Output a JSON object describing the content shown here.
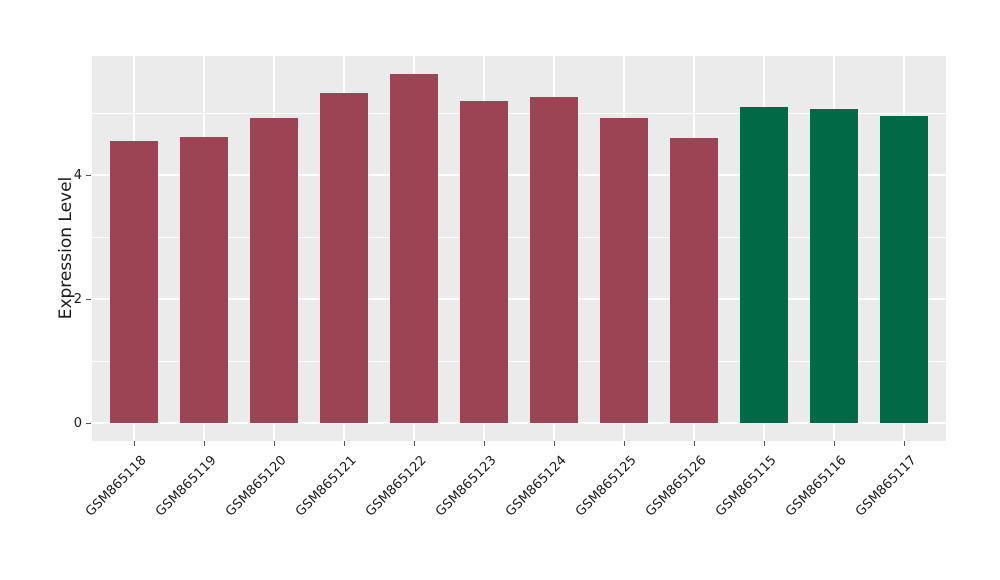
{
  "chart_data": {
    "type": "bar",
    "title": "",
    "xlabel": "",
    "ylabel": "Expression Level",
    "categories": [
      "GSM865118",
      "GSM865119",
      "GSM865120",
      "GSM865121",
      "GSM865122",
      "GSM865123",
      "GSM865124",
      "GSM865125",
      "GSM865126",
      "GSM865115",
      "GSM865116",
      "GSM865117"
    ],
    "values": [
      4.55,
      4.62,
      4.92,
      5.33,
      5.63,
      5.2,
      5.26,
      4.92,
      4.59,
      5.1,
      5.06,
      4.96
    ],
    "bar_colors": [
      "#9C4453",
      "#9C4453",
      "#9C4453",
      "#9C4453",
      "#9C4453",
      "#9C4453",
      "#9C4453",
      "#9C4453",
      "#9C4453",
      "#006946",
      "#006946",
      "#006946"
    ],
    "group_colors": {
      "maroon": "#9C4453",
      "green": "#006946"
    },
    "ylim": [
      -0.29,
      5.92
    ],
    "yticks_major": [
      0,
      2,
      4
    ],
    "yticks_minor": [
      1,
      3,
      5
    ],
    "ytick_labels": [
      "0",
      "2",
      "4"
    ],
    "x_tick_rotation_deg": 45,
    "grid": "on",
    "legend": "none",
    "panel_bg": "#EBEBEB",
    "grid_color": "#FFFFFF",
    "tick_color": "#555555",
    "text_color": "#1a1a1a"
  }
}
